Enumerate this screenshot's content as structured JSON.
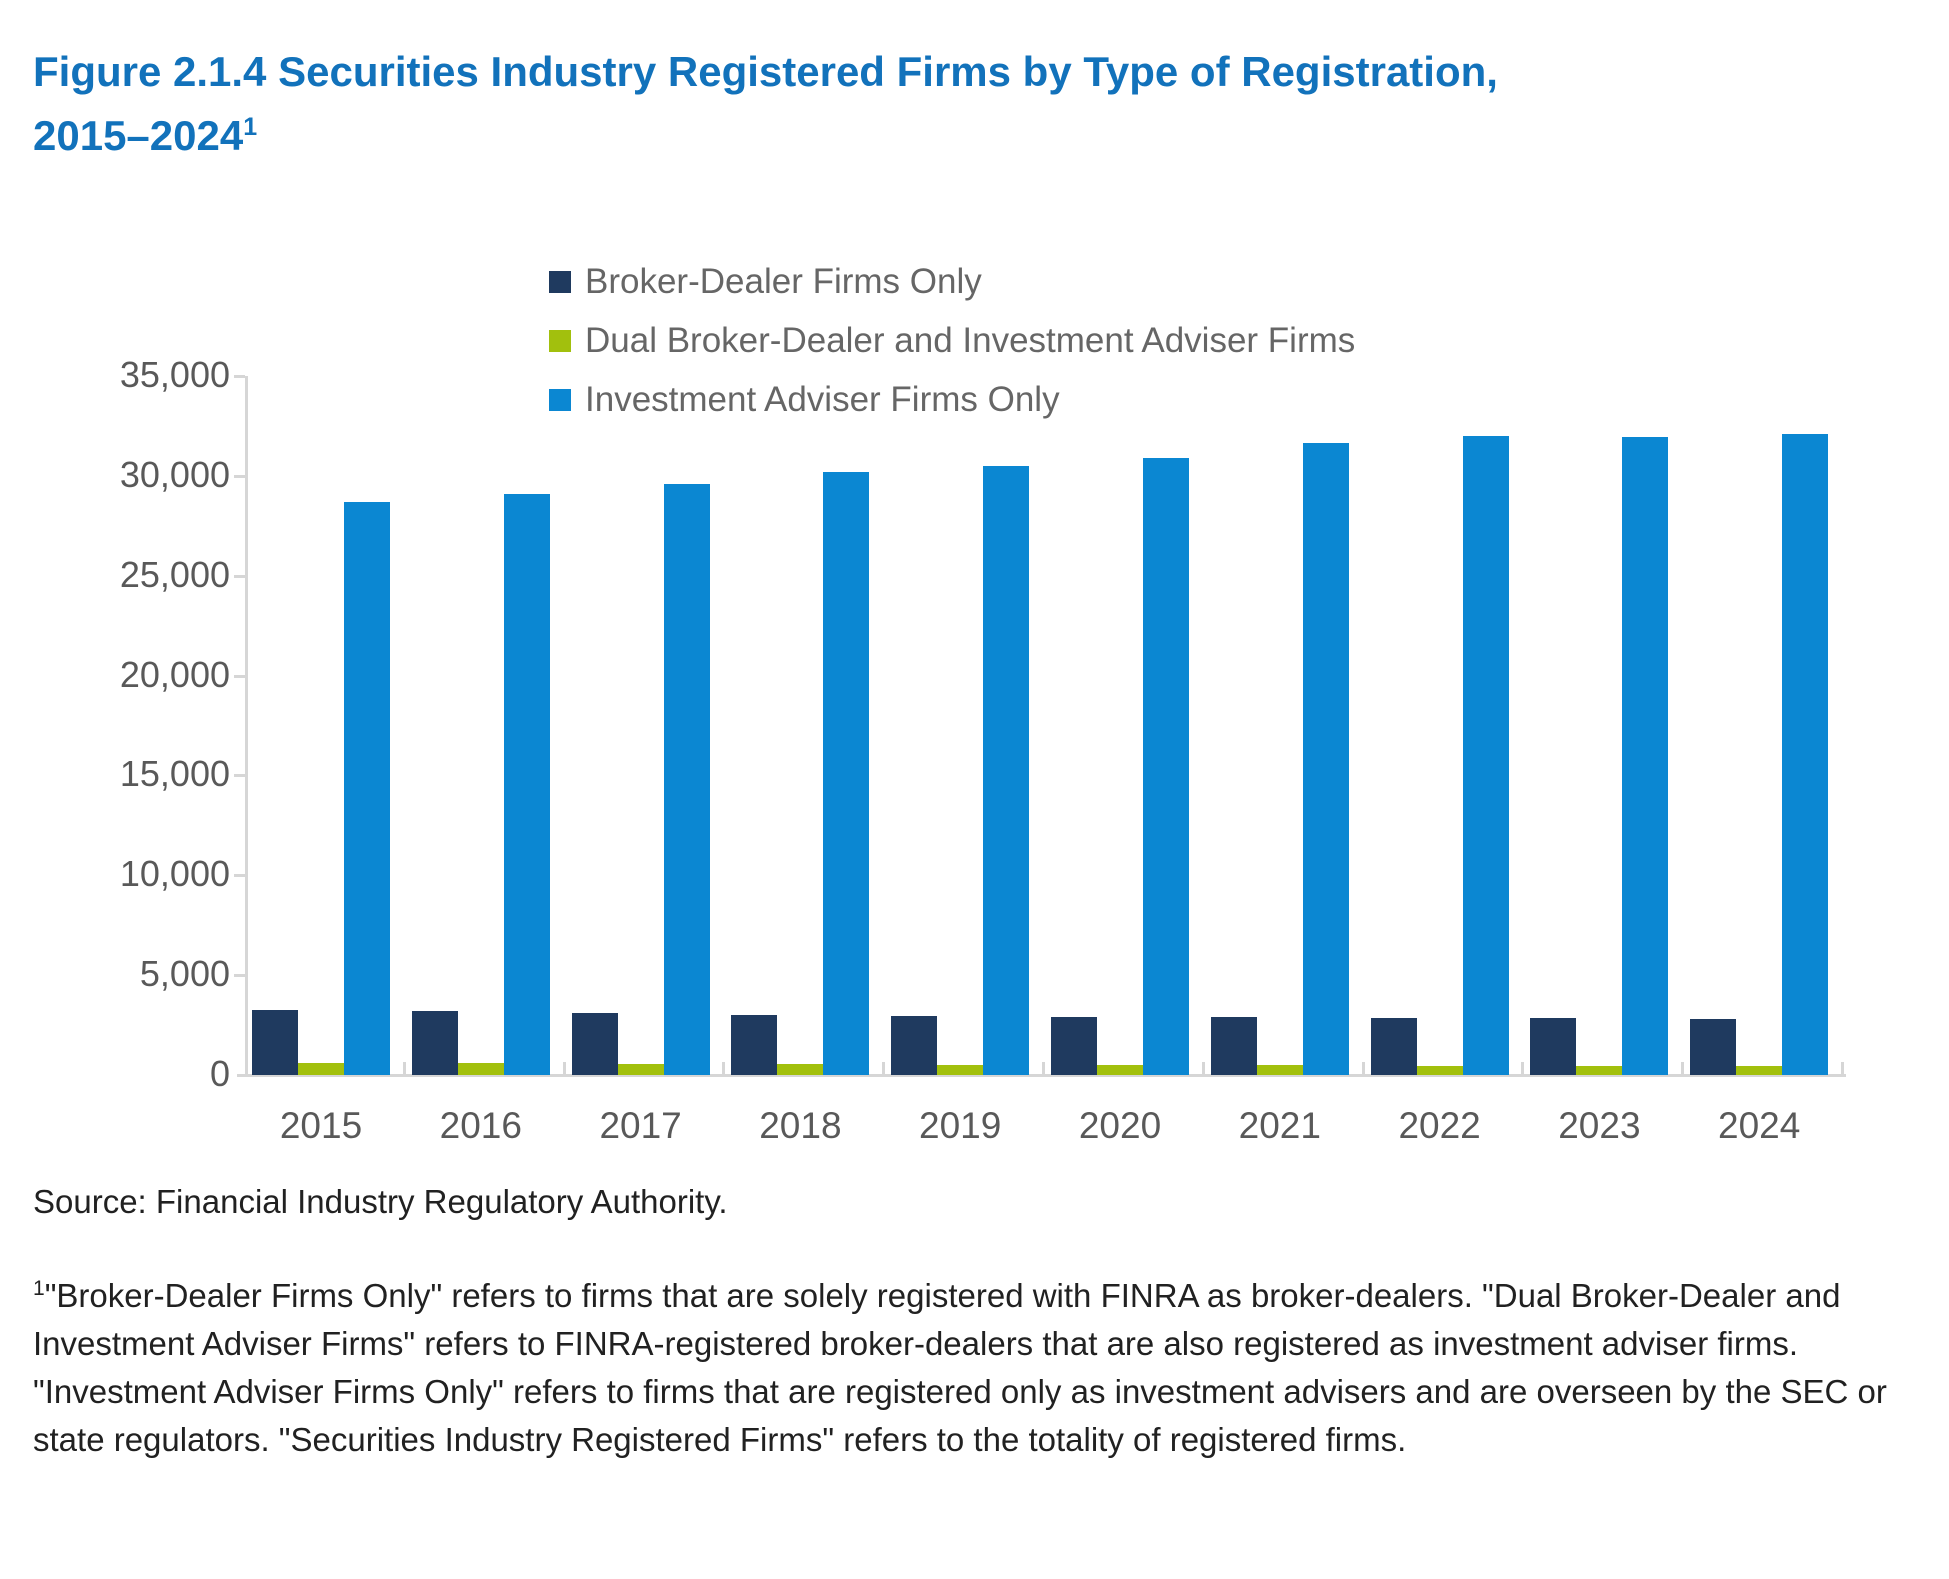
{
  "page": {
    "title_line1": "Figure 2.1.4 Securities Industry Registered Firms by Type of Registration,",
    "title_line2": "2015–2024",
    "title_superscript": "1",
    "source": "Source: Financial Industry Regulatory Authority.",
    "footnote_superscript": "1",
    "footnote_text": "\"Broker-Dealer Firms Only\" refers to firms that are solely registered with FINRA as broker-dealers. \"Dual Broker-Dealer and Investment Adviser Firms\" refers to FINRA-registered broker-dealers that are also registered as investment adviser firms. \"Investment Adviser Firms Only\" refers to firms that are registered only as investment advisers and are overseen by the SEC or state regulators. \"Securities Industry Registered Firms\" refers to the totality of registered firms."
  },
  "colors": {
    "title_blue": "#1272BB",
    "broker_dealer_navy": "#1F3A5F",
    "dual_green": "#A2C00D",
    "investment_adviser_blue": "#0B87D2",
    "axis_gray": "#D6D6D6",
    "tick_label_gray": "#595959",
    "legend_text_gray": "#666666",
    "body_text": "#212121"
  },
  "chart_data": {
    "type": "bar",
    "categories": [
      "2015",
      "2016",
      "2017",
      "2018",
      "2019",
      "2020",
      "2021",
      "2022",
      "2023",
      "2024"
    ],
    "series": [
      {
        "name": "Broker-Dealer Firms Only",
        "color": "#1F3A5F",
        "values": [
          3250,
          3200,
          3100,
          3000,
          2950,
          2900,
          2900,
          2850,
          2850,
          2800
        ]
      },
      {
        "name": "Dual Broker-Dealer and Investment Adviser Firms",
        "color": "#A2C00D",
        "values": [
          600,
          580,
          560,
          540,
          520,
          500,
          480,
          460,
          450,
          430
        ]
      },
      {
        "name": "Investment Adviser Firms Only",
        "color": "#0B87D2",
        "values": [
          28700,
          29100,
          29600,
          30200,
          30500,
          30900,
          31650,
          31990,
          31950,
          32080
        ]
      }
    ],
    "ylim": [
      0,
      35000
    ],
    "y_tick_labels": [
      "0",
      "5,000",
      "10,000",
      "15,000",
      "20,000",
      "25,000",
      "30,000",
      "35,000"
    ],
    "y_tick_step": 5000,
    "grid": false,
    "legend_position": "top-center"
  }
}
